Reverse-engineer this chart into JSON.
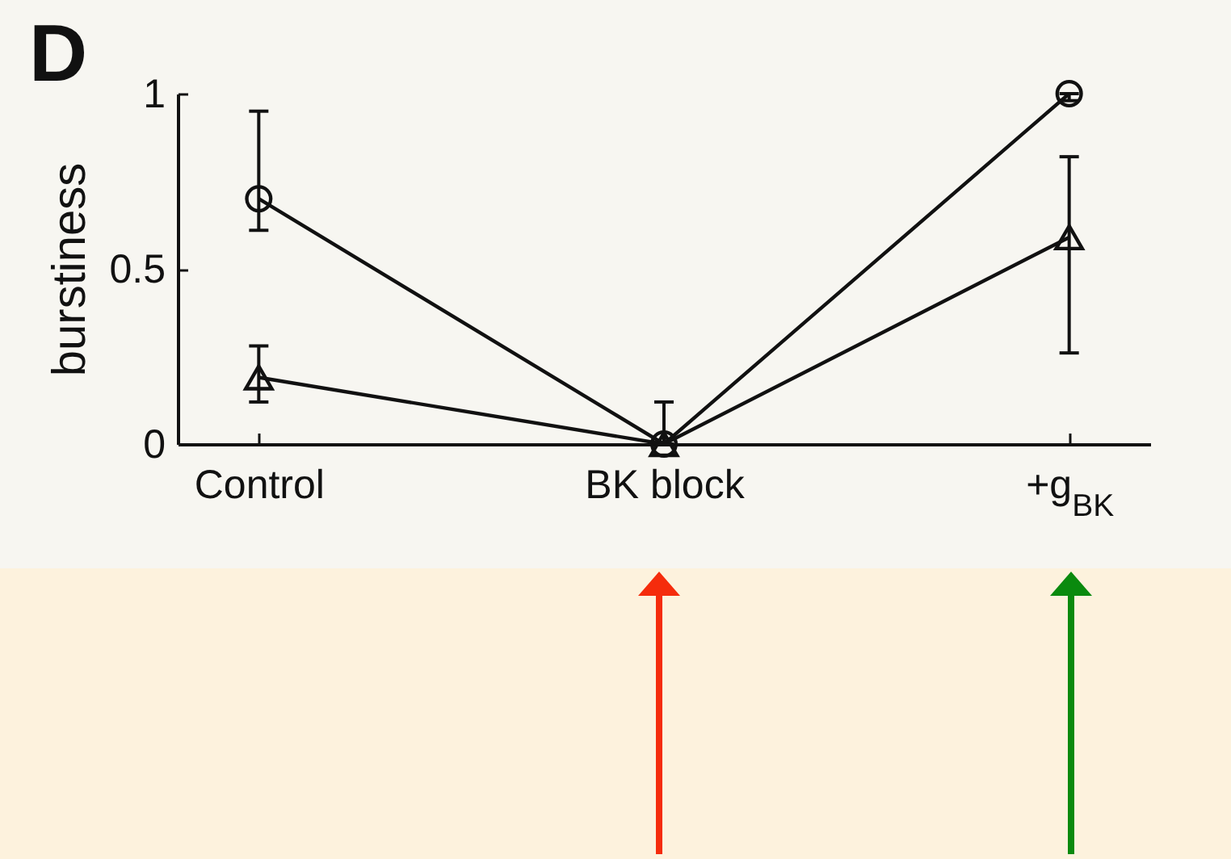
{
  "chart_data": {
    "type": "line",
    "title": "D",
    "ylabel": "burstiness",
    "categories": [
      "Control",
      "BK block",
      "+g$_{BK}$"
    ],
    "series": [
      {
        "color": "#111111",
        "marker": "circle",
        "values": [
          0.7,
          0,
          1.0
        ],
        "errors": [
          [
            0.61,
            0.95
          ],
          null,
          [
            0.98,
            1.0
          ]
        ]
      },
      {
        "color": "#111111",
        "marker": "triangle",
        "values": [
          0.19,
          0,
          0.59
        ],
        "errors": [
          [
            0.12,
            0.28
          ],
          [
            0,
            0.12
          ],
          [
            0.26,
            0.82
          ]
        ]
      }
    ],
    "ylim": [
      0,
      1
    ],
    "yticks": [
      0,
      0.5,
      1
    ]
  }
}
